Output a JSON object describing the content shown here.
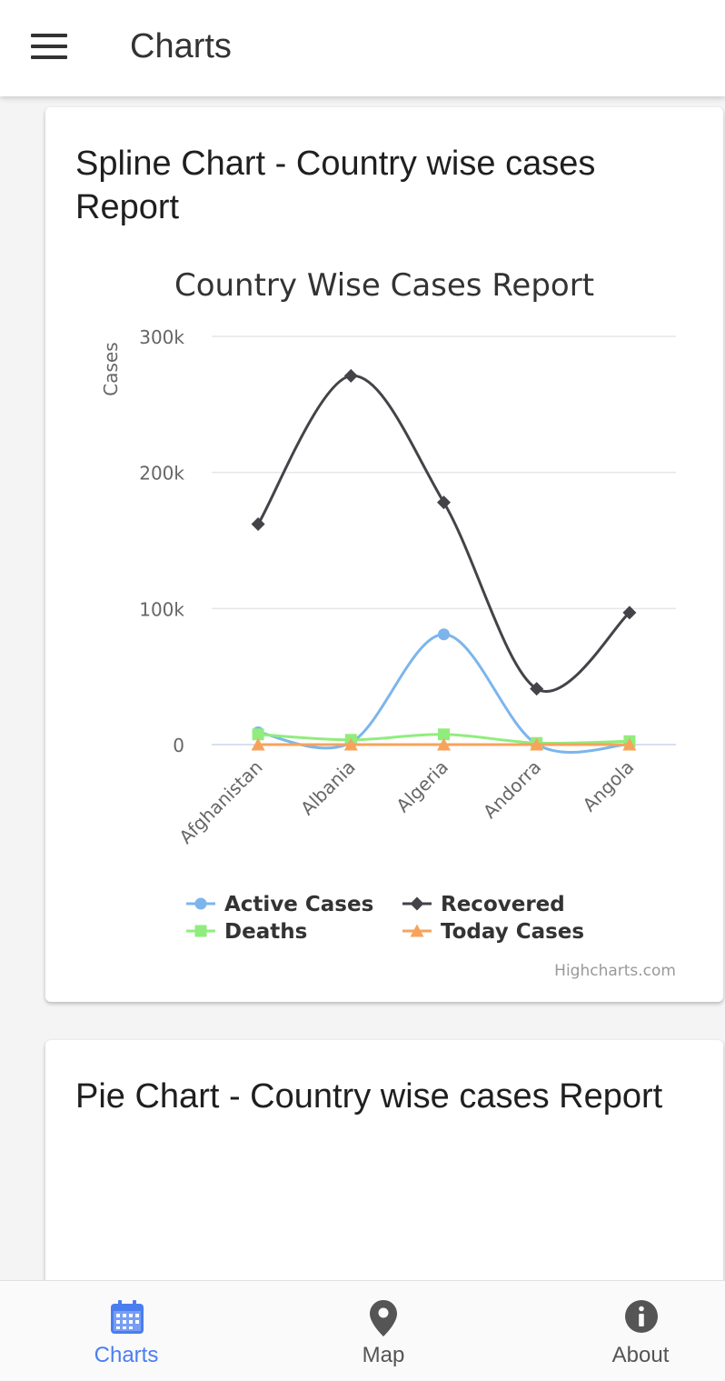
{
  "app": {
    "title": "Charts"
  },
  "cards": [
    {
      "title": "Spline Chart - Country wise cases Report"
    },
    {
      "title": "Pie Chart - Country wise cases Report"
    }
  ],
  "chart_data": {
    "type": "line",
    "style": "spline",
    "title": "Country Wise Cases Report",
    "ylabel": "Cases",
    "xlabel": "",
    "categories": [
      "Afghanistan",
      "Albania",
      "Algeria",
      "Andorra",
      "Angola"
    ],
    "ylim": [
      0,
      300000
    ],
    "yticks": [
      "0",
      "100k",
      "200k",
      "300k"
    ],
    "ytick_values": [
      0,
      100000,
      200000,
      300000
    ],
    "grid": true,
    "legend_placement": "bottom",
    "series": [
      {
        "name": "Active Cases",
        "values": [
          9000,
          1500,
          81000,
          300,
          300
        ],
        "color": "#7cb5ec",
        "marker": "circle"
      },
      {
        "name": "Recovered",
        "values": [
          162000,
          271000,
          178000,
          41000,
          97000
        ],
        "color": "#434348",
        "marker": "diamond"
      },
      {
        "name": "Deaths",
        "values": [
          7500,
          3500,
          7500,
          1200,
          2500
        ],
        "color": "#90ed7d",
        "marker": "square"
      },
      {
        "name": "Today Cases",
        "values": [
          0,
          0,
          0,
          0,
          0
        ],
        "color": "#f7a35c",
        "marker": "triangle"
      }
    ],
    "credits": "Highcharts.com"
  },
  "bottom_nav": {
    "items": [
      {
        "label": "Charts",
        "icon": "calendar-icon",
        "active": true,
        "color": "#4a7ef0"
      },
      {
        "label": "Map",
        "icon": "map-pin-icon",
        "active": false,
        "color": "#555555"
      },
      {
        "label": "About",
        "icon": "info-icon",
        "active": false,
        "color": "#555555"
      }
    ]
  }
}
